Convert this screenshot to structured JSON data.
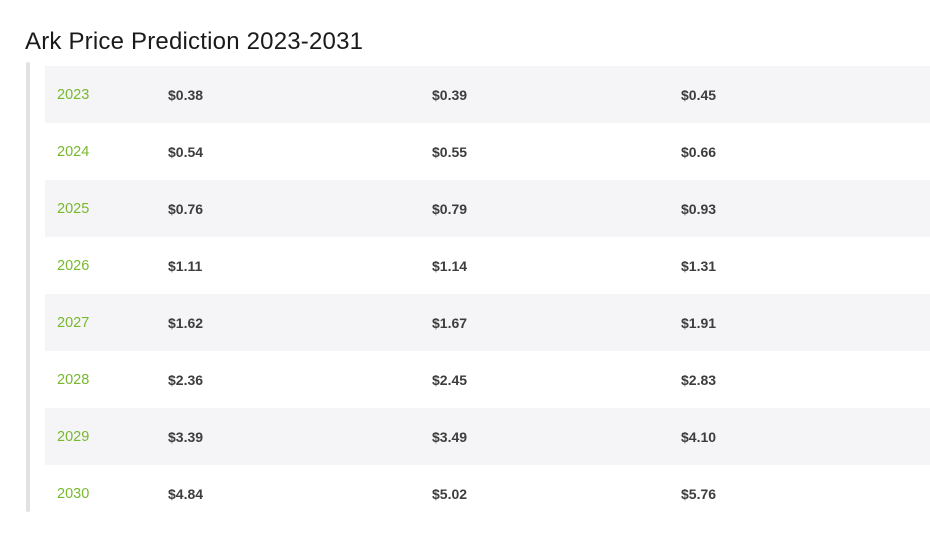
{
  "page": {
    "title": "Ark Price Prediction 2023-2031"
  },
  "colors": {
    "accent_green": "#77b82d",
    "price_text": "#3d3d3d",
    "row_stripe": "#f5f5f7",
    "scrollbar_track": "#e2e2e4",
    "background": "#ffffff"
  },
  "table": {
    "rows": [
      {
        "year": "2023",
        "values": [
          "$0.38",
          "$0.39",
          "$0.45"
        ]
      },
      {
        "year": "2024",
        "values": [
          "$0.54",
          "$0.55",
          "$0.66"
        ]
      },
      {
        "year": "2025",
        "values": [
          "$0.76",
          "$0.79",
          "$0.93"
        ]
      },
      {
        "year": "2026",
        "values": [
          "$1.11",
          "$1.14",
          "$1.31"
        ]
      },
      {
        "year": "2027",
        "values": [
          "$1.62",
          "$1.67",
          "$1.91"
        ]
      },
      {
        "year": "2028",
        "values": [
          "$2.36",
          "$2.45",
          "$2.83"
        ]
      },
      {
        "year": "2029",
        "values": [
          "$3.39",
          "$3.49",
          "$4.10"
        ]
      },
      {
        "year": "2030",
        "values": [
          "$4.84",
          "$5.02",
          "$5.76"
        ]
      }
    ]
  }
}
